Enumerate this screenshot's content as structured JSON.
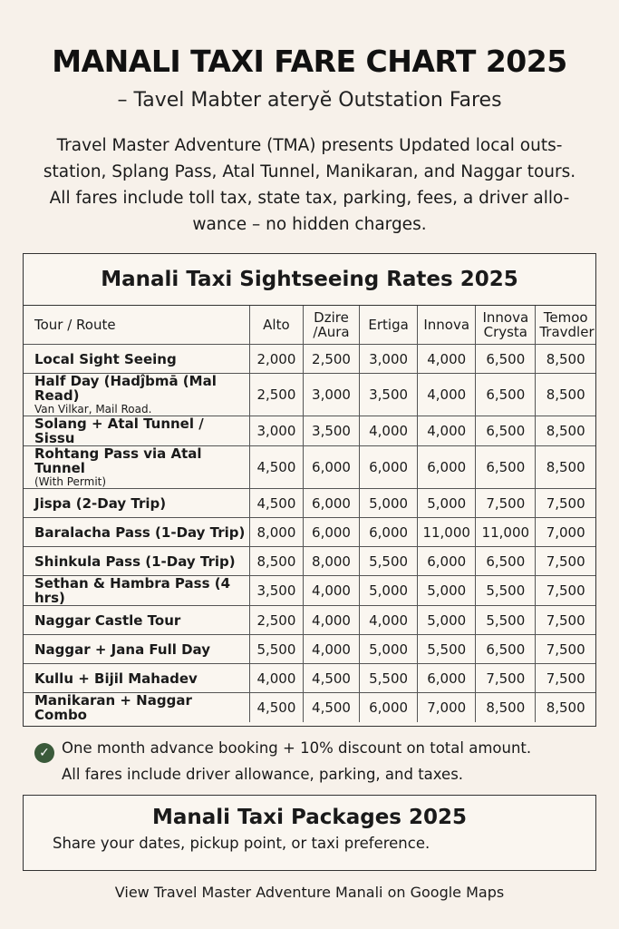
{
  "header": {
    "title": "MANALI TAXI FARE CHART 2025",
    "subtitle": "– Tavel Mabter ateryĕ Outstation Fares"
  },
  "intro": {
    "line1": "Travel Master Adventure (TMA) presents Updated local outs-",
    "line2": "station, Splang Pass, Atal Tunnel, Manikaran, and Naggar tours.",
    "line3": "All fares include toll tax, state tax, parking, fees, a driver allo-",
    "line4": "wance – no hidden charges."
  },
  "rates": {
    "title": "Manali Taxi Sightseeing Rates 2025",
    "columns": [
      {
        "l1": "Tour / Route",
        "l2": ""
      },
      {
        "l1": "Alto",
        "l2": ""
      },
      {
        "l1": "Dzire",
        "l2": "/Aura"
      },
      {
        "l1": "Ertiga",
        "l2": ""
      },
      {
        "l1": "Innova",
        "l2": ""
      },
      {
        "l1": "Innova",
        "l2": "Crysta"
      },
      {
        "l1": "Temoo",
        "l2": "Travdler"
      }
    ],
    "rows": [
      {
        "route": "Local Sight Seeing",
        "sub": "",
        "fares": [
          "2,000",
          "2,500",
          "3,000",
          "4,000",
          "6,500",
          "8,500"
        ]
      },
      {
        "route": "Half Day (Hadĵbmā (Mal Read)",
        "sub": "Van Vilkar, Mail Road.",
        "fares": [
          "2,500",
          "3,000",
          "3,500",
          "4,000",
          "6,500",
          "8,500"
        ]
      },
      {
        "route": "Solang + Atal Tunnel / Sissu",
        "sub": "",
        "fares": [
          "3,000",
          "3,500",
          "4,000",
          "4,000",
          "6,500",
          "8,500"
        ]
      },
      {
        "route": "Rohtang Pass via Atal Tunnel",
        "sub": "(With Permit)",
        "fares": [
          "4,500",
          "6,000",
          "6,000",
          "6,000",
          "6,500",
          "8,500"
        ]
      },
      {
        "route": "Jispa (2-Day Trip)",
        "sub": "",
        "fares": [
          "4,500",
          "6,000",
          "5,000",
          "5,000",
          "7,500",
          "7,500"
        ]
      },
      {
        "route": "Baralacha Pass (1-Day Trip)",
        "sub": "",
        "fares": [
          "8,000",
          "6,000",
          "6,000",
          "11,000",
          "11,000",
          "7,000"
        ]
      },
      {
        "route": "Shinkula Pass (1-Day Trip)",
        "sub": "",
        "fares": [
          "8,500",
          "8,000",
          "5,500",
          "6,000",
          "6,500",
          "7,500"
        ]
      },
      {
        "route": "Sethan & Hambra Pass (4 hrs)",
        "sub": "",
        "fares": [
          "3,500",
          "4,000",
          "5,000",
          "5,000",
          "5,500",
          "7,500"
        ]
      },
      {
        "route": "Naggar Castle Tour",
        "sub": "",
        "fares": [
          "2,500",
          "4,000",
          "4,000",
          "5,000",
          "5,500",
          "7,500"
        ]
      },
      {
        "route": "Naggar + Jana Full Day",
        "sub": "",
        "fares": [
          "5,500",
          "4,000",
          "5,000",
          "5,500",
          "6,500",
          "7,500"
        ]
      },
      {
        "route": "Kullu + Bijil Mahadev",
        "sub": "",
        "fares": [
          "4,000",
          "4,500",
          "5,500",
          "6,000",
          "7,500",
          "7,500"
        ]
      },
      {
        "route": "Manikaran + Naggar Combo",
        "sub": "",
        "fares": [
          "4,500",
          "4,500",
          "6,000",
          "7,000",
          "8,500",
          "8,500"
        ]
      }
    ]
  },
  "notes": {
    "icon": "check-circle-icon",
    "line1": "One month advance booking + 10% discount on total amount.",
    "line2": "All fares include driver allowance, parking, and taxes."
  },
  "packages": {
    "title": "Manali Taxi Packages 2025",
    "text": "Share your dates, pickup point, or taxi preference."
  },
  "footer": {
    "maps_link": "View Travel Master Adventure Manali on Google Maps"
  }
}
